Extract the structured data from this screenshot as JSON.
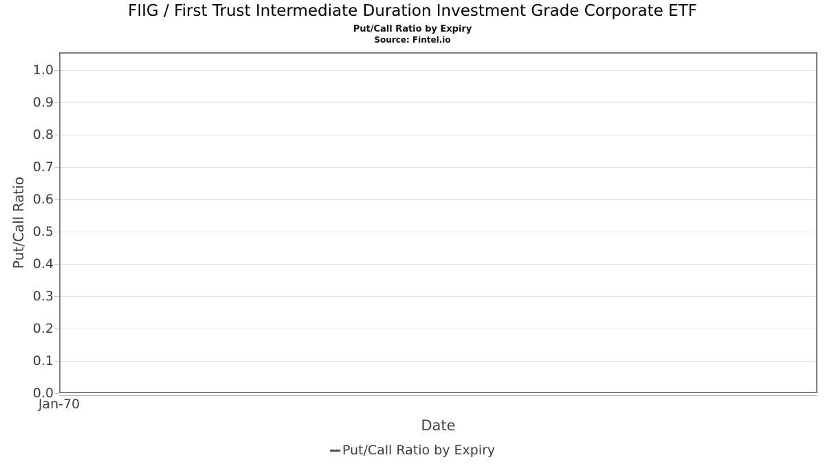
{
  "header": {
    "title": "FIIG / First Trust Intermediate Duration Investment Grade Corporate ETF",
    "subtitle": "Put/Call Ratio by Expiry",
    "source": "Source: Fintel.io"
  },
  "colors": {
    "series_green": "#2c6b32",
    "plot_border": "#7e7e7e",
    "gridline": "#e4e4e4",
    "tick_text": "#3d3d3d"
  },
  "legend": {
    "items": [
      {
        "label": "Put/Call Ratio by Expiry",
        "color": "#2c6b32"
      }
    ]
  },
  "chart_data": {
    "type": "line",
    "title": "Put/Call Ratio by Expiry",
    "xlabel": "Date",
    "ylabel": "Put/Call Ratio",
    "x_ticks": [
      "Jan-70"
    ],
    "y_ticks": [
      "0.0",
      "0.1",
      "0.2",
      "0.3",
      "0.4",
      "0.5",
      "0.6",
      "0.7",
      "0.8",
      "0.9",
      "1.0"
    ],
    "ylim": [
      0,
      1.055
    ],
    "grid": true,
    "legend_position": "bottom",
    "series": [
      {
        "name": "Put/Call Ratio by Expiry",
        "color": "#2c6b32",
        "x": [],
        "values": []
      }
    ]
  }
}
